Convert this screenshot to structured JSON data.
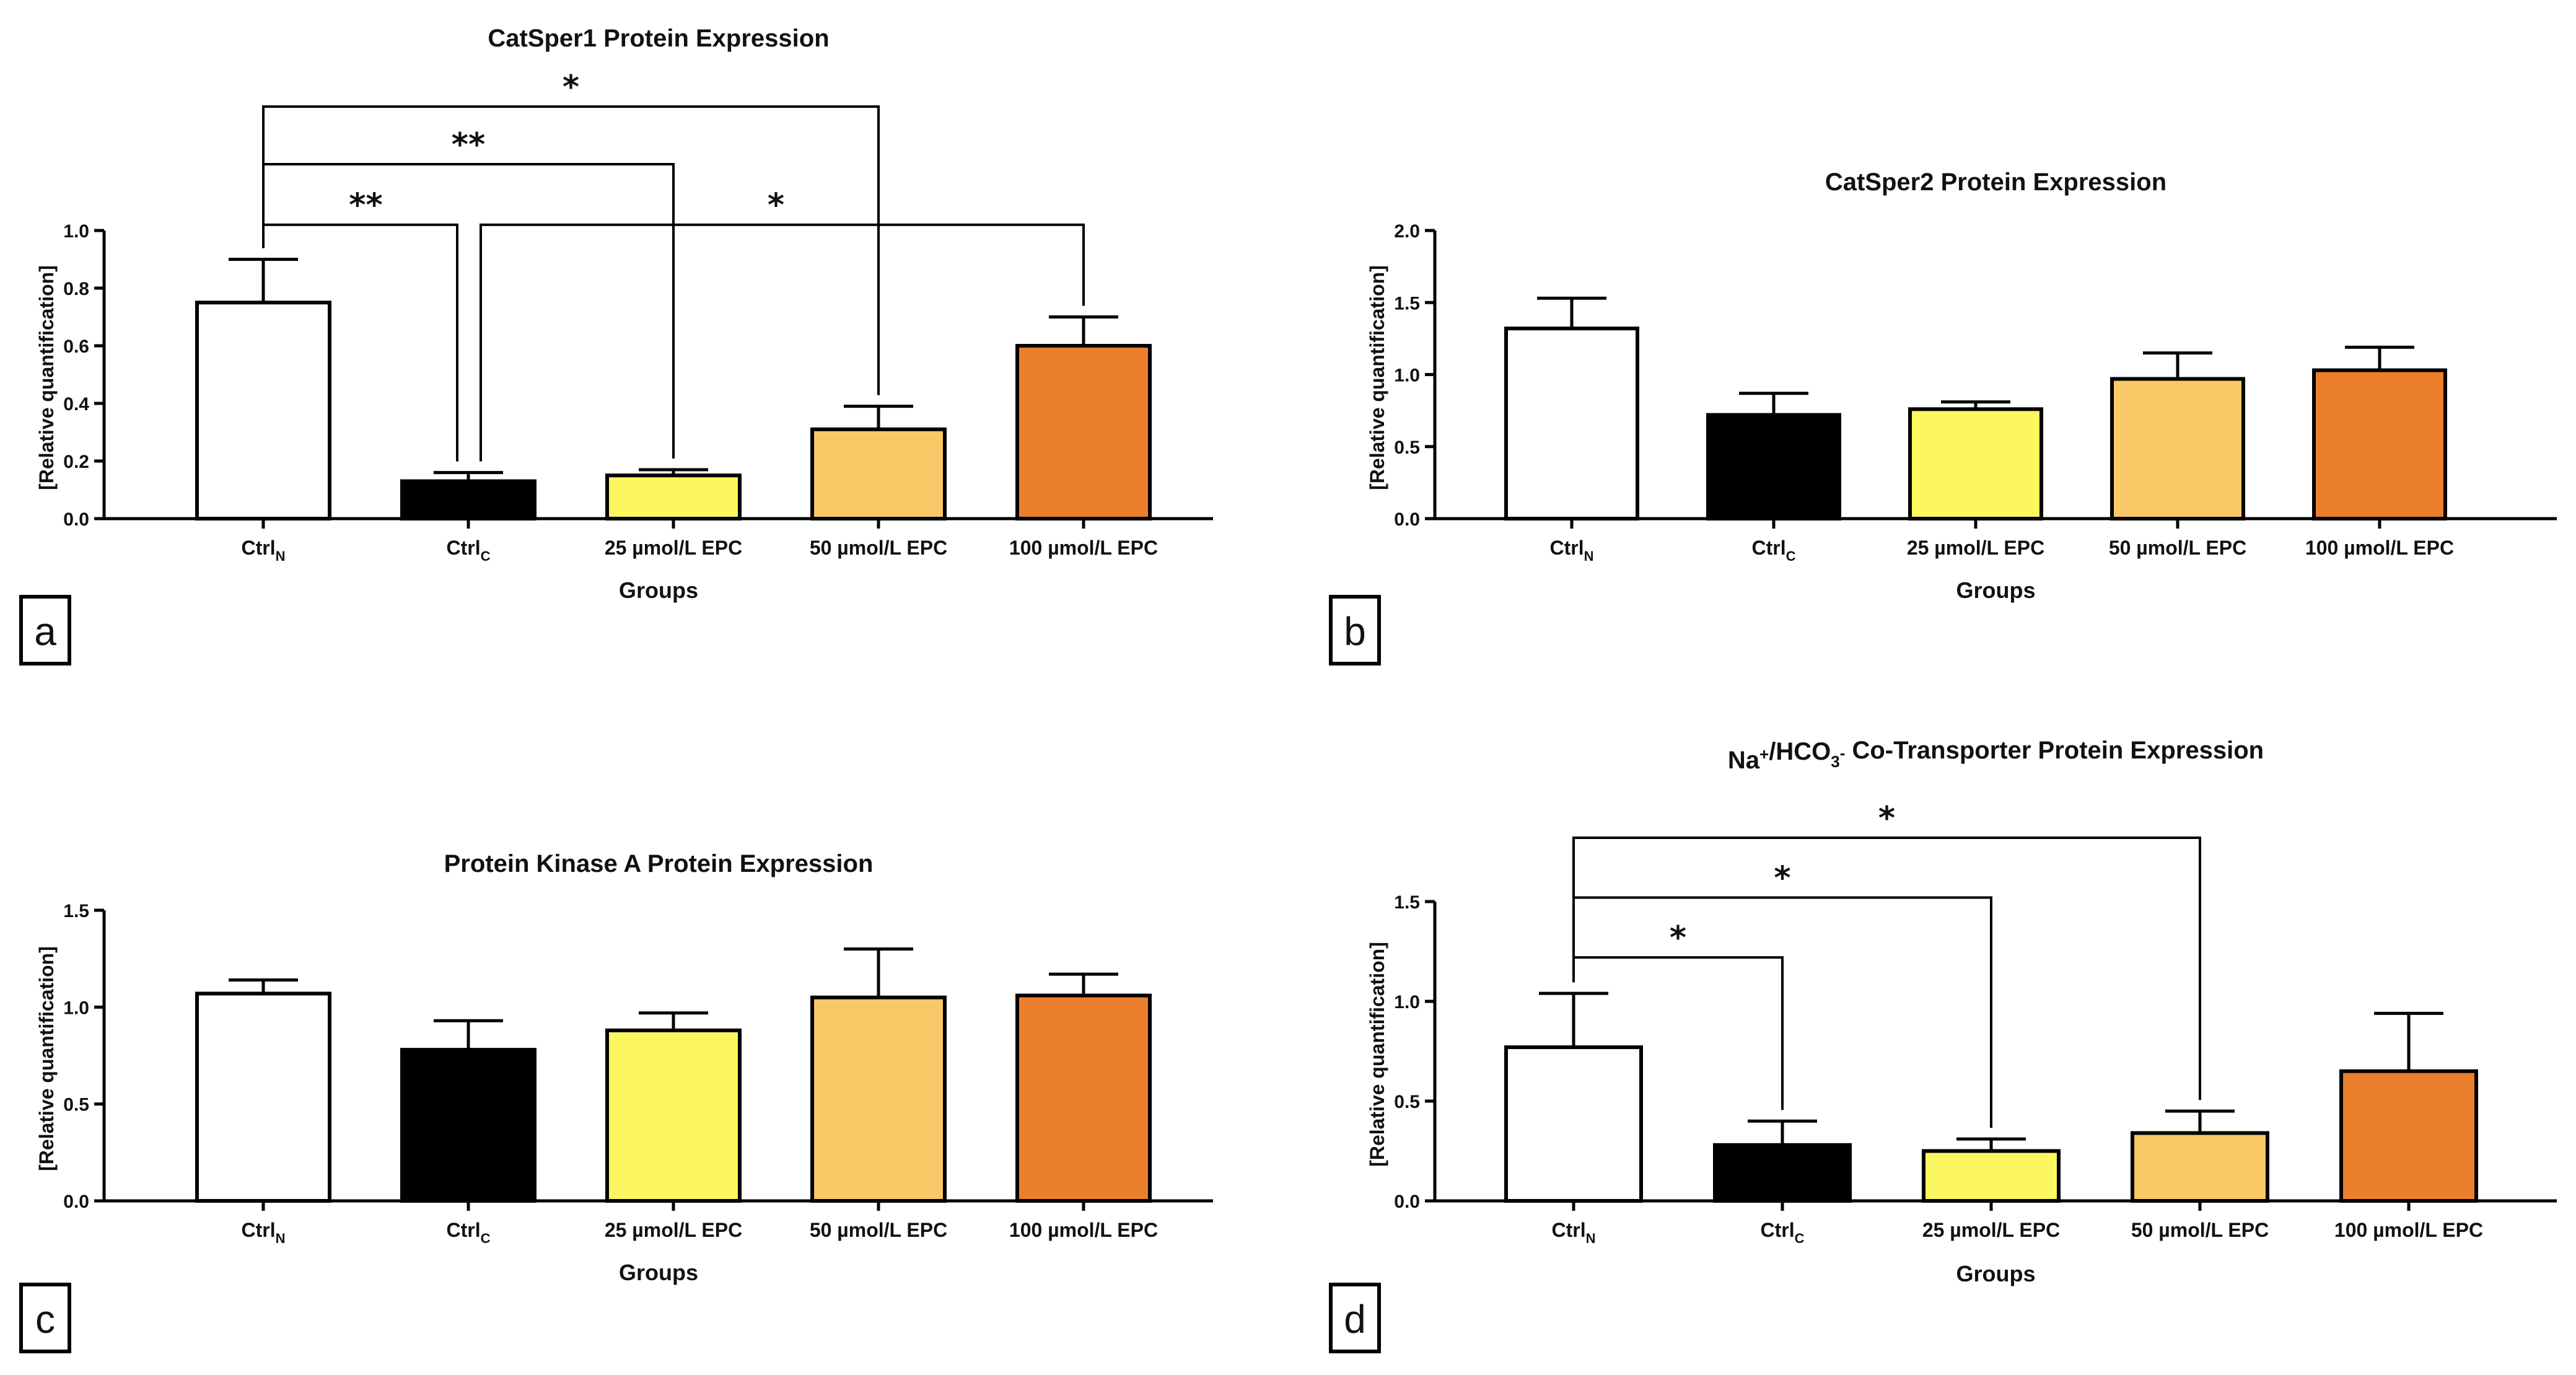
{
  "colors": {
    "ctrl_n": "#ffffff",
    "ctrl_c": "#000000",
    "epc25": "#fcf760",
    "epc50": "#f8c966",
    "epc100": "#eb7f2b",
    "axis": "#000000"
  },
  "chart_data": [
    {
      "panel": "a",
      "type": "bar",
      "title": "CatSper1 Protein Expression",
      "xlabel": "Groups",
      "ylabel": "[Relative quantification]",
      "ylim": [
        0,
        1.0
      ],
      "yticks": [
        0.0,
        0.2,
        0.4,
        0.6,
        0.8,
        1.0
      ],
      "ytick_labels": [
        "0.0",
        "0.2",
        "0.4",
        "0.6",
        "0.8",
        "1.0"
      ],
      "categories": [
        {
          "base": "Ctrl",
          "sub": "N"
        },
        {
          "base": "Ctrl",
          "sub": "C"
        },
        {
          "base": "25 µmol/L EPC",
          "sub": ""
        },
        {
          "base": "50 µmol/L EPC",
          "sub": ""
        },
        {
          "base": "100 µmol/L EPC",
          "sub": ""
        }
      ],
      "values": [
        0.75,
        0.13,
        0.15,
        0.31,
        0.6
      ],
      "errors": [
        0.15,
        0.03,
        0.02,
        0.08,
        0.1
      ],
      "significance": [
        {
          "from": 0,
          "to": 1,
          "label": "**",
          "level": 1.02
        },
        {
          "from": 1,
          "to": 4,
          "label": "*",
          "level": 1.02
        },
        {
          "from": 0,
          "to": 2,
          "label": "**",
          "level": 1.23
        },
        {
          "from": 0,
          "to": 3,
          "label": "*",
          "level": 1.43
        }
      ]
    },
    {
      "panel": "b",
      "type": "bar",
      "title": "CatSper2 Protein Expression",
      "xlabel": "Groups",
      "ylabel": "[Relative quantification]",
      "ylim": [
        0,
        2.0
      ],
      "yticks": [
        0.0,
        0.5,
        1.0,
        1.5,
        2.0
      ],
      "ytick_labels": [
        "0.0",
        "0.5",
        "1.0",
        "1.5",
        "2.0"
      ],
      "categories": [
        {
          "base": "Ctrl",
          "sub": "N"
        },
        {
          "base": "Ctrl",
          "sub": "C"
        },
        {
          "base": "25 µmol/L EPC",
          "sub": ""
        },
        {
          "base": "50 µmol/L EPC",
          "sub": ""
        },
        {
          "base": "100 µmol/L EPC",
          "sub": ""
        }
      ],
      "values": [
        1.32,
        0.72,
        0.76,
        0.97,
        1.03
      ],
      "errors": [
        0.21,
        0.15,
        0.05,
        0.18,
        0.16
      ],
      "significance": []
    },
    {
      "panel": "c",
      "type": "bar",
      "title": "Protein Kinase A Protein Expression",
      "xlabel": "Groups",
      "ylabel": "[Relative quantification]",
      "ylim": [
        0,
        1.5
      ],
      "yticks": [
        0.0,
        0.5,
        1.0,
        1.5
      ],
      "ytick_labels": [
        "0.0",
        "0.5",
        "1.0",
        "1.5"
      ],
      "categories": [
        {
          "base": "Ctrl",
          "sub": "N"
        },
        {
          "base": "Ctrl",
          "sub": "C"
        },
        {
          "base": "25 µmol/L EPC",
          "sub": ""
        },
        {
          "base": "50 µmol/L EPC",
          "sub": ""
        },
        {
          "base": "100 µmol/L EPC",
          "sub": ""
        }
      ],
      "values": [
        1.07,
        0.78,
        0.88,
        1.05,
        1.06
      ],
      "errors": [
        0.07,
        0.15,
        0.09,
        0.25,
        0.11
      ],
      "significance": []
    },
    {
      "panel": "d",
      "type": "bar",
      "title": "Na⁺/HCO₃⁻ Co-Transporter Protein Expression",
      "xlabel": "Groups",
      "ylabel": "[Relative quantification]",
      "ylim": [
        0,
        1.5
      ],
      "yticks": [
        0.0,
        0.5,
        1.0,
        1.5
      ],
      "ytick_labels": [
        "0.0",
        "0.5",
        "1.0",
        "1.5"
      ],
      "categories": [
        {
          "base": "Ctrl",
          "sub": "N"
        },
        {
          "base": "Ctrl",
          "sub": "C"
        },
        {
          "base": "25 µmol/L EPC",
          "sub": ""
        },
        {
          "base": "50 µmol/L EPC",
          "sub": ""
        },
        {
          "base": "100 µmol/L EPC",
          "sub": ""
        }
      ],
      "values": [
        0.77,
        0.28,
        0.25,
        0.34,
        0.65
      ],
      "errors": [
        0.27,
        0.12,
        0.06,
        0.11,
        0.29
      ],
      "significance": [
        {
          "from": 0,
          "to": 1,
          "label": "*",
          "level": 1.22
        },
        {
          "from": 0,
          "to": 2,
          "label": "*",
          "level": 1.52
        },
        {
          "from": 0,
          "to": 3,
          "label": "*",
          "level": 1.82
        }
      ]
    }
  ]
}
